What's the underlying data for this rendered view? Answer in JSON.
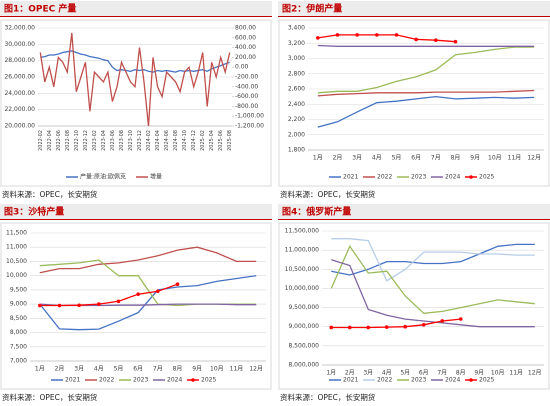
{
  "chart_data": [
    {
      "type": "line",
      "title": "图1：OPEC 产量",
      "source": "资料来源：OPEC，长安期货",
      "grid": true,
      "categories": [
        "2022-02",
        null,
        "2022-04",
        null,
        "2022-06",
        null,
        "2022-08",
        null,
        "2022-10",
        null,
        "2022-12",
        null,
        "2023-02",
        null,
        "2023-04",
        null,
        "2023-06",
        null,
        "2023-08",
        null,
        "2023-10",
        null,
        "2023-12",
        null,
        "2024-02",
        null,
        "2024-04",
        null,
        "2024-06",
        null,
        "2024-08",
        null,
        "2024-10",
        null,
        "2024-12",
        null,
        "2025-02",
        null,
        "2025-04",
        null,
        "2025-06",
        null,
        "2025-08"
      ],
      "ylim": [
        20000,
        32000
      ],
      "yticks": [
        {
          "value": 20000,
          "label": "20,000.00"
        },
        {
          "value": 22000,
          "label": "22,000.00"
        },
        {
          "value": 24000,
          "label": "24,000.00"
        },
        {
          "value": 26000,
          "label": "26,000.00"
        },
        {
          "value": 28000,
          "label": "28,000.00"
        },
        {
          "value": 30000,
          "label": "30,000.00"
        },
        {
          "value": 32000,
          "label": "32,000.00"
        }
      ],
      "y2lim": [
        -1200,
        800
      ],
      "y2ticks": [
        {
          "value": -1200,
          "label": "-1,200.00"
        },
        {
          "value": -1000,
          "label": "-1,000.00"
        },
        {
          "value": -800,
          "label": "-800.00"
        },
        {
          "value": -600,
          "label": "-600.00"
        },
        {
          "value": -400,
          "label": "-400.00"
        },
        {
          "value": -200,
          "label": "-200.00"
        },
        {
          "value": 0,
          "label": "0.00"
        },
        {
          "value": 200,
          "label": "200.00"
        },
        {
          "value": 400,
          "label": "400.00"
        },
        {
          "value": 600,
          "label": "600.00"
        },
        {
          "value": 800,
          "label": "800.00"
        }
      ],
      "series": [
        {
          "name": "产量:原油:欧佩克",
          "color": "#4472c4",
          "values": [
            28400,
            28500,
            28700,
            28700,
            28800,
            29000,
            29100,
            29200,
            29000,
            28800,
            28700,
            28500,
            28400,
            28300,
            28100,
            28000,
            27200,
            26800,
            26900,
            26800,
            26700,
            26900,
            26800,
            26900,
            26700,
            26600,
            26800,
            26700,
            26800,
            26700,
            26600,
            26800,
            26700,
            26800,
            26700,
            26800,
            26900,
            26700,
            27000,
            27200,
            27400,
            27600,
            27800
          ]
        },
        {
          "name": "增量",
          "color": "#c0504d",
          "axis": "y2",
          "values": [
            300,
            -300,
            0,
            -400,
            200,
            100,
            -100,
            700,
            -500,
            -200,
            100,
            -900,
            -100,
            -200,
            -300,
            -100,
            -700,
            -400,
            100,
            -100,
            -300,
            -400,
            400,
            -300,
            -1200,
            200,
            -400,
            -600,
            -100,
            -200,
            -300,
            -500,
            -100,
            0,
            -400,
            -100,
            300,
            -800,
            100,
            -200,
            200,
            -100,
            300
          ]
        }
      ]
    },
    {
      "type": "line",
      "title": "图2：伊朗产量",
      "source": "资料来源：OPEC，长安期货",
      "grid": true,
      "categories": [
        "1月",
        "2月",
        "3月",
        "4月",
        "5月",
        "6月",
        "7月",
        "8月",
        "9月",
        "10月",
        "11月",
        "12月"
      ],
      "ylim": [
        1800,
        3400
      ],
      "yticks": [
        {
          "value": 1800,
          "label": "1,800"
        },
        {
          "value": 2000,
          "label": "2,000"
        },
        {
          "value": 2200,
          "label": "2,200"
        },
        {
          "value": 2400,
          "label": "2,400"
        },
        {
          "value": 2600,
          "label": "2,600"
        },
        {
          "value": 2800,
          "label": "2,800"
        },
        {
          "value": 3000,
          "label": "3,000"
        },
        {
          "value": 3200,
          "label": "3,200"
        },
        {
          "value": 3400,
          "label": "3,400"
        }
      ],
      "series": [
        {
          "name": "2021",
          "color": "#4472c4",
          "values": [
            2100,
            2170,
            2300,
            2420,
            2440,
            2470,
            2500,
            2470,
            2480,
            2490,
            2480,
            2490
          ]
        },
        {
          "name": "2022",
          "color": "#c0504d",
          "values": [
            2510,
            2530,
            2540,
            2550,
            2550,
            2550,
            2560,
            2560,
            2560,
            2560,
            2570,
            2580
          ]
        },
        {
          "name": "2023",
          "color": "#9bbb59",
          "values": [
            2550,
            2570,
            2570,
            2620,
            2700,
            2760,
            2850,
            3050,
            3080,
            3120,
            3150,
            3150
          ]
        },
        {
          "name": "2024",
          "color": "#8064a2",
          "values": [
            3170,
            3160,
            3160,
            3160,
            3160,
            3160,
            3160,
            3160,
            3160,
            3160,
            3160,
            3160
          ]
        },
        {
          "name": "2025",
          "color": "#ff0000",
          "marker": true,
          "values": [
            3270,
            3310,
            3310,
            3310,
            3310,
            3250,
            3240,
            3220,
            null,
            null,
            null,
            null
          ]
        }
      ]
    },
    {
      "type": "line",
      "title": "图3：沙特产量",
      "source": "资料来源：OPEC，长安期货",
      "grid": true,
      "categories": [
        "1月",
        "2月",
        "3月",
        "4月",
        "5月",
        "6月",
        "7月",
        "8月",
        "9月",
        "10月",
        "11月",
        "12月"
      ],
      "ylim": [
        7000,
        11500
      ],
      "yticks": [
        {
          "value": 7000,
          "label": "7,000"
        },
        {
          "value": 7500,
          "label": "7,500"
        },
        {
          "value": 8000,
          "label": "8,000"
        },
        {
          "value": 8500,
          "label": "8,500"
        },
        {
          "value": 9000,
          "label": "9,000"
        },
        {
          "value": 9500,
          "label": "9,500"
        },
        {
          "value": 10000,
          "label": "10,000"
        },
        {
          "value": 10500,
          "label": "10,500"
        },
        {
          "value": 11000,
          "label": "11,000"
        },
        {
          "value": 11500,
          "label": "11,500"
        }
      ],
      "series": [
        {
          "name": "2021",
          "color": "#4472c4",
          "values": [
            9000,
            8130,
            8100,
            8120,
            8400,
            8700,
            9500,
            9600,
            9650,
            9800,
            9900,
            10000
          ]
        },
        {
          "name": "2022",
          "color": "#c0504d",
          "values": [
            10100,
            10250,
            10250,
            10400,
            10450,
            10550,
            10700,
            10900,
            11000,
            10800,
            10500,
            10500
          ]
        },
        {
          "name": "2023",
          "color": "#9bbb59",
          "values": [
            10350,
            10400,
            10450,
            10550,
            10000,
            10000,
            9000,
            8950,
            9000,
            9000,
            9000,
            9000
          ]
        },
        {
          "name": "2024",
          "color": "#8064a2",
          "values": [
            9000,
            8950,
            8950,
            8950,
            8960,
            8960,
            8980,
            9000,
            9000,
            9000,
            8980,
            8980
          ]
        },
        {
          "name": "2025",
          "color": "#ff0000",
          "marker": true,
          "values": [
            8950,
            8950,
            8960,
            9000,
            9100,
            9350,
            9450,
            9700,
            null,
            null,
            null,
            null
          ]
        }
      ]
    },
    {
      "type": "line",
      "title": "图4：俄罗斯产量",
      "source": "资料来源：OPEC，长安期货",
      "grid": true,
      "categories": [
        "1月",
        "2月",
        "3月",
        "4月",
        "5月",
        "6月",
        "7月",
        "8月",
        "9月",
        "10月",
        "11月",
        "12月"
      ],
      "ylim": [
        8000000,
        11500000
      ],
      "yticks": [
        {
          "value": 8000000,
          "label": "8,000,000"
        },
        {
          "value": 8500000,
          "label": "8,500,000"
        },
        {
          "value": 9000000,
          "label": "9,000,000"
        },
        {
          "value": 9500000,
          "label": "9,500,000"
        },
        {
          "value": 10000000,
          "label": "10,000,000"
        },
        {
          "value": 10500000,
          "label": "10,500,000"
        },
        {
          "value": 11000000,
          "label": "11,000,000"
        },
        {
          "value": 11500000,
          "label": "11,500,000"
        }
      ],
      "series": [
        {
          "name": "2021",
          "color": "#4472c4",
          "values": [
            10450000,
            10350000,
            10500000,
            10700000,
            10700000,
            10650000,
            10650000,
            10700000,
            10900000,
            11100000,
            11150000,
            11150000
          ]
        },
        {
          "name": "2022",
          "color": "#b7cde8",
          "values": [
            11300000,
            11300000,
            11250000,
            10200000,
            10500000,
            10950000,
            10950000,
            10950000,
            10900000,
            10900000,
            10870000,
            10870000
          ]
        },
        {
          "name": "2023",
          "color": "#9bbb59",
          "values": [
            10000000,
            11100000,
            10400000,
            10450000,
            9800000,
            9350000,
            9400000,
            9500000,
            9600000,
            9700000,
            9650000,
            9600000
          ]
        },
        {
          "name": "2024",
          "color": "#8064a2",
          "values": [
            10750000,
            10600000,
            9450000,
            9300000,
            9200000,
            9150000,
            9100000,
            9050000,
            9000000,
            9000000,
            9000000,
            9000000
          ]
        },
        {
          "name": "2025",
          "color": "#ff0000",
          "marker": true,
          "values": [
            8980000,
            8980000,
            8980000,
            8990000,
            9000000,
            9050000,
            9150000,
            9200000,
            null,
            null,
            null,
            null
          ]
        }
      ]
    }
  ]
}
